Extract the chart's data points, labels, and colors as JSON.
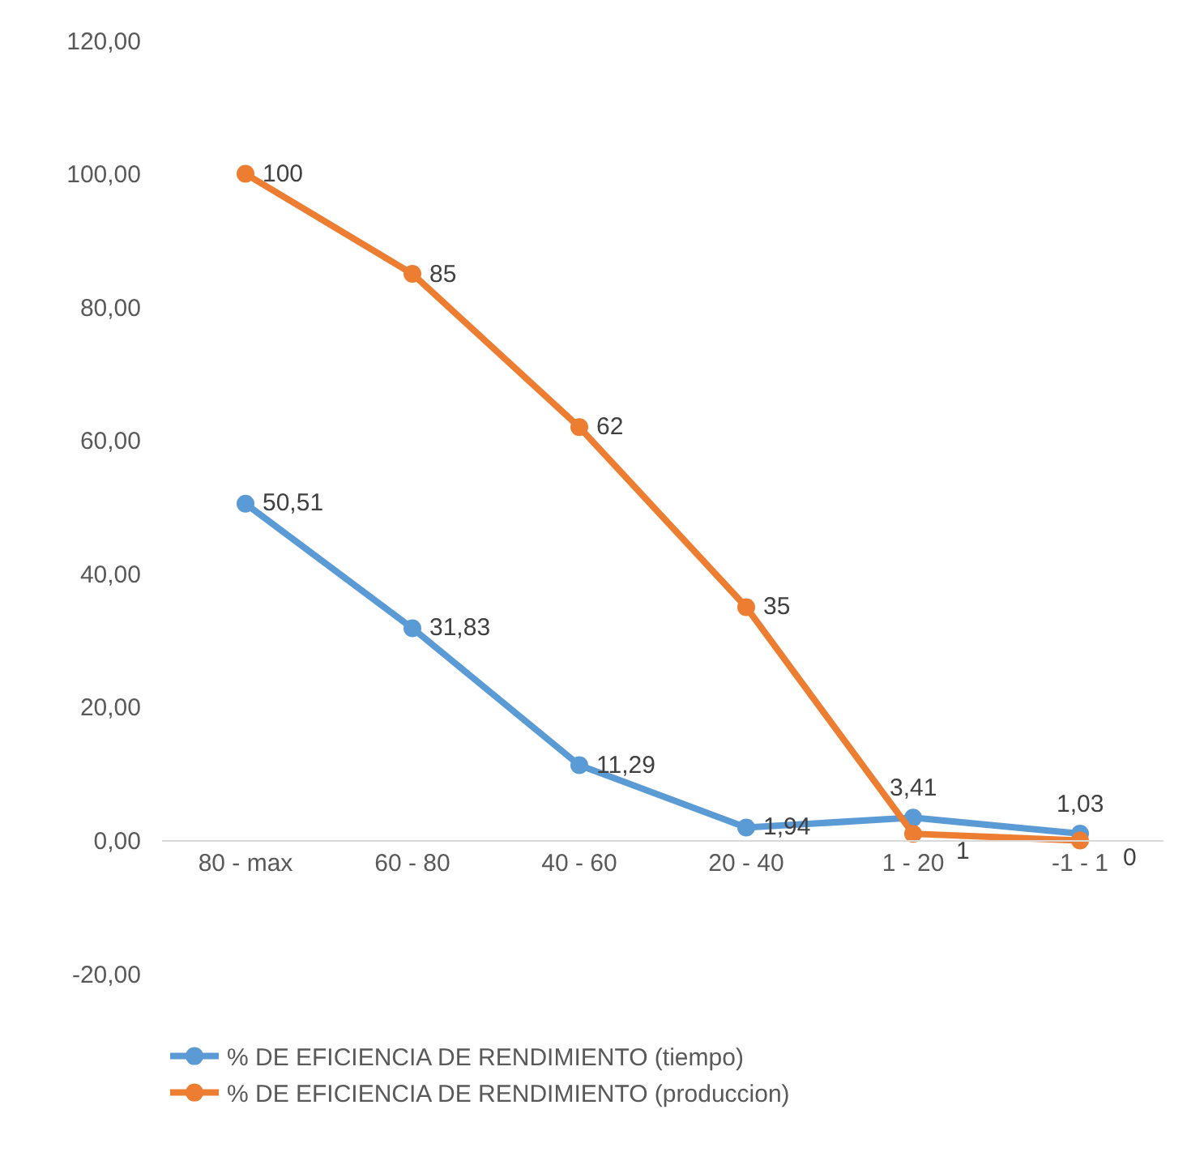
{
  "chart_data": {
    "type": "line",
    "categories": [
      "80 - max",
      "60 - 80",
      "40 - 60",
      "20 - 40",
      "1 - 20",
      "-1 - 1"
    ],
    "series": [
      {
        "name": "% DE EFICIENCIA DE RENDIMIENTO (tiempo)",
        "color": "#5b9bd5",
        "values": [
          50.51,
          31.83,
          11.29,
          1.94,
          3.41,
          1.03
        ],
        "value_labels": [
          "50,51",
          "31,83",
          "11,29",
          "1,94",
          "3,41",
          "1,03"
        ]
      },
      {
        "name": "% DE EFICIENCIA DE RENDIMIENTO (produccion)",
        "color": "#ed7d31",
        "values": [
          100,
          85,
          62,
          35,
          1,
          0
        ],
        "value_labels": [
          "100",
          "85",
          "62",
          "35",
          "1",
          "0"
        ]
      }
    ],
    "ylim": [
      -20,
      120
    ],
    "yticks": [
      {
        "value": -20,
        "label": "-20,00"
      },
      {
        "value": 0,
        "label": "0,00"
      },
      {
        "value": 20,
        "label": "20,00"
      },
      {
        "value": 40,
        "label": "40,00"
      },
      {
        "value": 60,
        "label": "60,00"
      },
      {
        "value": 80,
        "label": "80,00"
      },
      {
        "value": 100,
        "label": "100,00"
      },
      {
        "value": 120,
        "label": "120,00"
      }
    ],
    "grid": false,
    "legend": "bottom",
    "marker": "circle",
    "line_style": "solid"
  }
}
